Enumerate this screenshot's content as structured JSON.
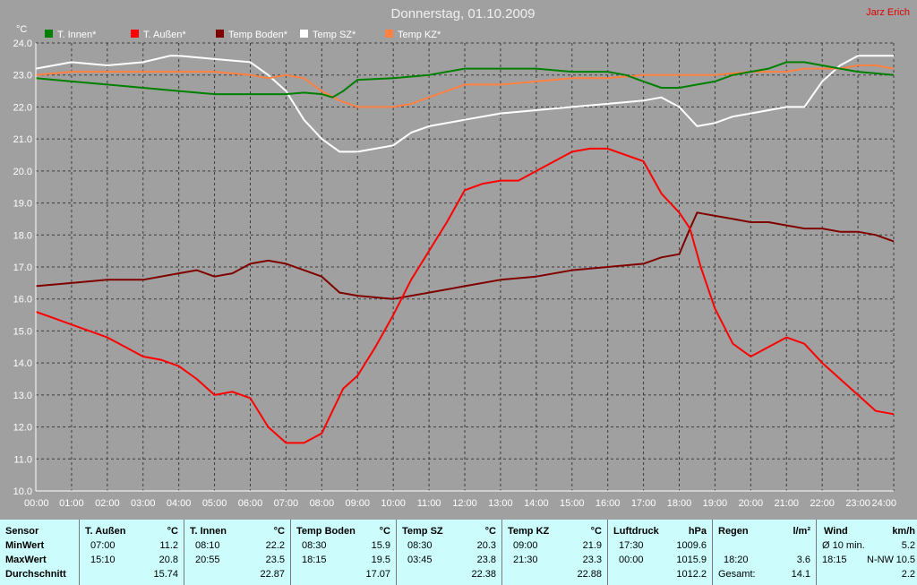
{
  "chart_data": {
    "type": "line",
    "title": "Donnerstag, 01.10.2009",
    "author": "Jarz Erich",
    "ylabel": "°C",
    "ylim": [
      10.0,
      24.0
    ],
    "y_ticks": [
      "10.0",
      "11.0",
      "12.0",
      "13.0",
      "14.0",
      "15.0",
      "16.0",
      "17.0",
      "18.0",
      "19.0",
      "20.0",
      "21.0",
      "22.0",
      "23.0",
      "24.0"
    ],
    "x_ticks": [
      "00:00",
      "01:00",
      "02:00",
      "03:00",
      "04:00",
      "05:00",
      "06:00",
      "07:00",
      "08:00",
      "09:00",
      "10:00",
      "11:00",
      "12:00",
      "13:00",
      "14:00",
      "15:00",
      "16:00",
      "17:00",
      "18:00",
      "19:00",
      "20:00",
      "21:00",
      "22:00",
      "23:00",
      "24:00"
    ],
    "xlim": [
      0,
      24
    ],
    "grid": true,
    "legend_position": "top",
    "series": [
      {
        "name": "T. Innen*",
        "color": "#008000",
        "x": [
          0,
          1,
          2,
          3,
          4,
          5,
          6,
          7,
          7.5,
          8,
          8.3,
          8.6,
          9,
          10,
          11,
          12,
          13,
          14,
          15,
          16,
          16.5,
          17,
          17.5,
          18,
          18.5,
          19,
          19.5,
          20,
          20.5,
          21,
          21.5,
          22,
          22.5,
          23,
          23.5,
          24
        ],
        "y": [
          22.9,
          22.8,
          22.7,
          22.6,
          22.5,
          22.4,
          22.4,
          22.4,
          22.45,
          22.4,
          22.3,
          22.5,
          22.85,
          22.9,
          23.0,
          23.2,
          23.2,
          23.2,
          23.1,
          23.1,
          23.0,
          22.8,
          22.6,
          22.6,
          22.7,
          22.8,
          23.0,
          23.1,
          23.2,
          23.4,
          23.4,
          23.3,
          23.2,
          23.1,
          23.05,
          23.0
        ]
      },
      {
        "name": "T. Außen*",
        "color": "#ff0000",
        "x": [
          0,
          0.5,
          1,
          1.5,
          2,
          2.5,
          3,
          3.5,
          4,
          4.5,
          5,
          5.5,
          6,
          6.5,
          7,
          7.5,
          8,
          8.3,
          8.6,
          9,
          9.5,
          10,
          10.5,
          11,
          11.5,
          12,
          12.5,
          13,
          13.5,
          14,
          14.5,
          15,
          15.5,
          16,
          16.5,
          17,
          17.5,
          18,
          18.3,
          18.6,
          19,
          19.5,
          20,
          20.5,
          21,
          21.5,
          22,
          22.5,
          23,
          23.5,
          24
        ],
        "y": [
          15.6,
          15.4,
          15.2,
          15.0,
          14.8,
          14.5,
          14.2,
          14.1,
          13.9,
          13.5,
          13.0,
          13.1,
          12.9,
          12.0,
          11.5,
          11.5,
          11.8,
          12.5,
          13.2,
          13.6,
          14.5,
          15.5,
          16.6,
          17.5,
          18.4,
          19.4,
          19.6,
          19.7,
          19.7,
          20.0,
          20.3,
          20.6,
          20.7,
          20.7,
          20.5,
          20.3,
          19.3,
          18.7,
          18.2,
          17.0,
          15.7,
          14.6,
          14.2,
          14.5,
          14.8,
          14.6,
          14.0,
          13.5,
          13.0,
          12.5,
          12.4
        ]
      },
      {
        "name": "Temp Boden*",
        "color": "#800000",
        "x": [
          0,
          1,
          2,
          3,
          4,
          4.5,
          5,
          5.5,
          6,
          6.5,
          7,
          7.5,
          8,
          8.5,
          9,
          10,
          11,
          12,
          13,
          14,
          15,
          16,
          17,
          17.5,
          18,
          18.3,
          18.5,
          19,
          19.5,
          20,
          20.5,
          21,
          21.5,
          22,
          22.5,
          23,
          23.5,
          24
        ],
        "y": [
          16.4,
          16.5,
          16.6,
          16.6,
          16.8,
          16.9,
          16.7,
          16.8,
          17.1,
          17.2,
          17.1,
          16.9,
          16.7,
          16.2,
          16.1,
          16.0,
          16.2,
          16.4,
          16.6,
          16.7,
          16.9,
          17.0,
          17.1,
          17.3,
          17.4,
          18.2,
          18.7,
          18.6,
          18.5,
          18.4,
          18.4,
          18.3,
          18.2,
          18.2,
          18.1,
          18.1,
          18.0,
          17.8
        ]
      },
      {
        "name": "Temp SZ*",
        "color": "#ffffff",
        "x": [
          0,
          1,
          2,
          3,
          3.75,
          4,
          5,
          6,
          6.5,
          7,
          7.5,
          8,
          8.5,
          9,
          9.5,
          10,
          10.5,
          11,
          12,
          13,
          14,
          15,
          16,
          17,
          17.5,
          18,
          18.5,
          19,
          19.5,
          20,
          20.5,
          21,
          21.5,
          22,
          22.5,
          23,
          23.5,
          24
        ],
        "y": [
          23.2,
          23.4,
          23.3,
          23.4,
          23.6,
          23.6,
          23.5,
          23.4,
          23.0,
          22.5,
          21.6,
          21.0,
          20.6,
          20.6,
          20.7,
          20.8,
          21.2,
          21.4,
          21.6,
          21.8,
          21.9,
          22.0,
          22.1,
          22.2,
          22.3,
          22.0,
          21.4,
          21.5,
          21.7,
          21.8,
          21.9,
          22.0,
          22.0,
          22.8,
          23.3,
          23.6,
          23.6,
          23.6
        ]
      },
      {
        "name": "Temp KZ*",
        "color": "#ff8040",
        "x": [
          0,
          1,
          2,
          3,
          4,
          5,
          6,
          6.5,
          7,
          7.5,
          8,
          8.5,
          9,
          9.5,
          10,
          10.5,
          11,
          11.5,
          12,
          13,
          14,
          15,
          16,
          17,
          18,
          19,
          20,
          21,
          21.5,
          22,
          22.5,
          23,
          23.5,
          24
        ],
        "y": [
          23.0,
          23.1,
          23.1,
          23.1,
          23.1,
          23.1,
          23.0,
          22.9,
          23.0,
          22.9,
          22.5,
          22.2,
          22.0,
          22.0,
          22.0,
          22.1,
          22.3,
          22.5,
          22.7,
          22.7,
          22.8,
          22.9,
          22.9,
          23.0,
          23.0,
          23.0,
          23.1,
          23.1,
          23.2,
          23.2,
          23.2,
          23.3,
          23.3,
          23.2
        ]
      }
    ]
  },
  "stats": {
    "sensor": {
      "header": "Sensor",
      "min": "MinWert",
      "max": "MaxWert",
      "avg": "Durchschnitt"
    },
    "columns": [
      {
        "name": "T. Außen",
        "unit": "°C",
        "min_time": "07:00",
        "min_val": "11.2",
        "max_time": "15:10",
        "max_val": "20.8",
        "avg": "15.74"
      },
      {
        "name": "T. Innen",
        "unit": "°C",
        "min_time": "08:10",
        "min_val": "22.2",
        "max_time": "20:55",
        "max_val": "23.5",
        "avg": "22.87"
      },
      {
        "name": "Temp Boden",
        "unit": "°C",
        "min_time": "08:30",
        "min_val": "15.9",
        "max_time": "18:15",
        "max_val": "19.5",
        "avg": "17.07"
      },
      {
        "name": "Temp SZ",
        "unit": "°C",
        "min_time": "08:30",
        "min_val": "20.3",
        "max_time": "03:45",
        "max_val": "23.8",
        "avg": "22.38"
      },
      {
        "name": "Temp KZ",
        "unit": "°C",
        "min_time": "09:00",
        "min_val": "21.9",
        "max_time": "21:30",
        "max_val": "23.3",
        "avg": "22.88"
      },
      {
        "name": "Luftdruck",
        "unit": "hPa",
        "min_time": "17:30",
        "min_val": "1009.6",
        "max_time": "00:00",
        "max_val": "1015.9",
        "avg": "1012.2"
      }
    ],
    "regen": {
      "name": "Regen",
      "unit": "l/m²",
      "max_time": "18:20",
      "max_val": "3.6",
      "avg_label": "Gesamt:",
      "avg": "14.1"
    },
    "wind": {
      "name": "Wind",
      "unit": "km/h",
      "min_label": "Ø 10 min.",
      "min_val": "5.2",
      "max_time": "18:15",
      "max_dir": "N-NW",
      "max_val": "10.5",
      "avg": "2.2"
    }
  }
}
